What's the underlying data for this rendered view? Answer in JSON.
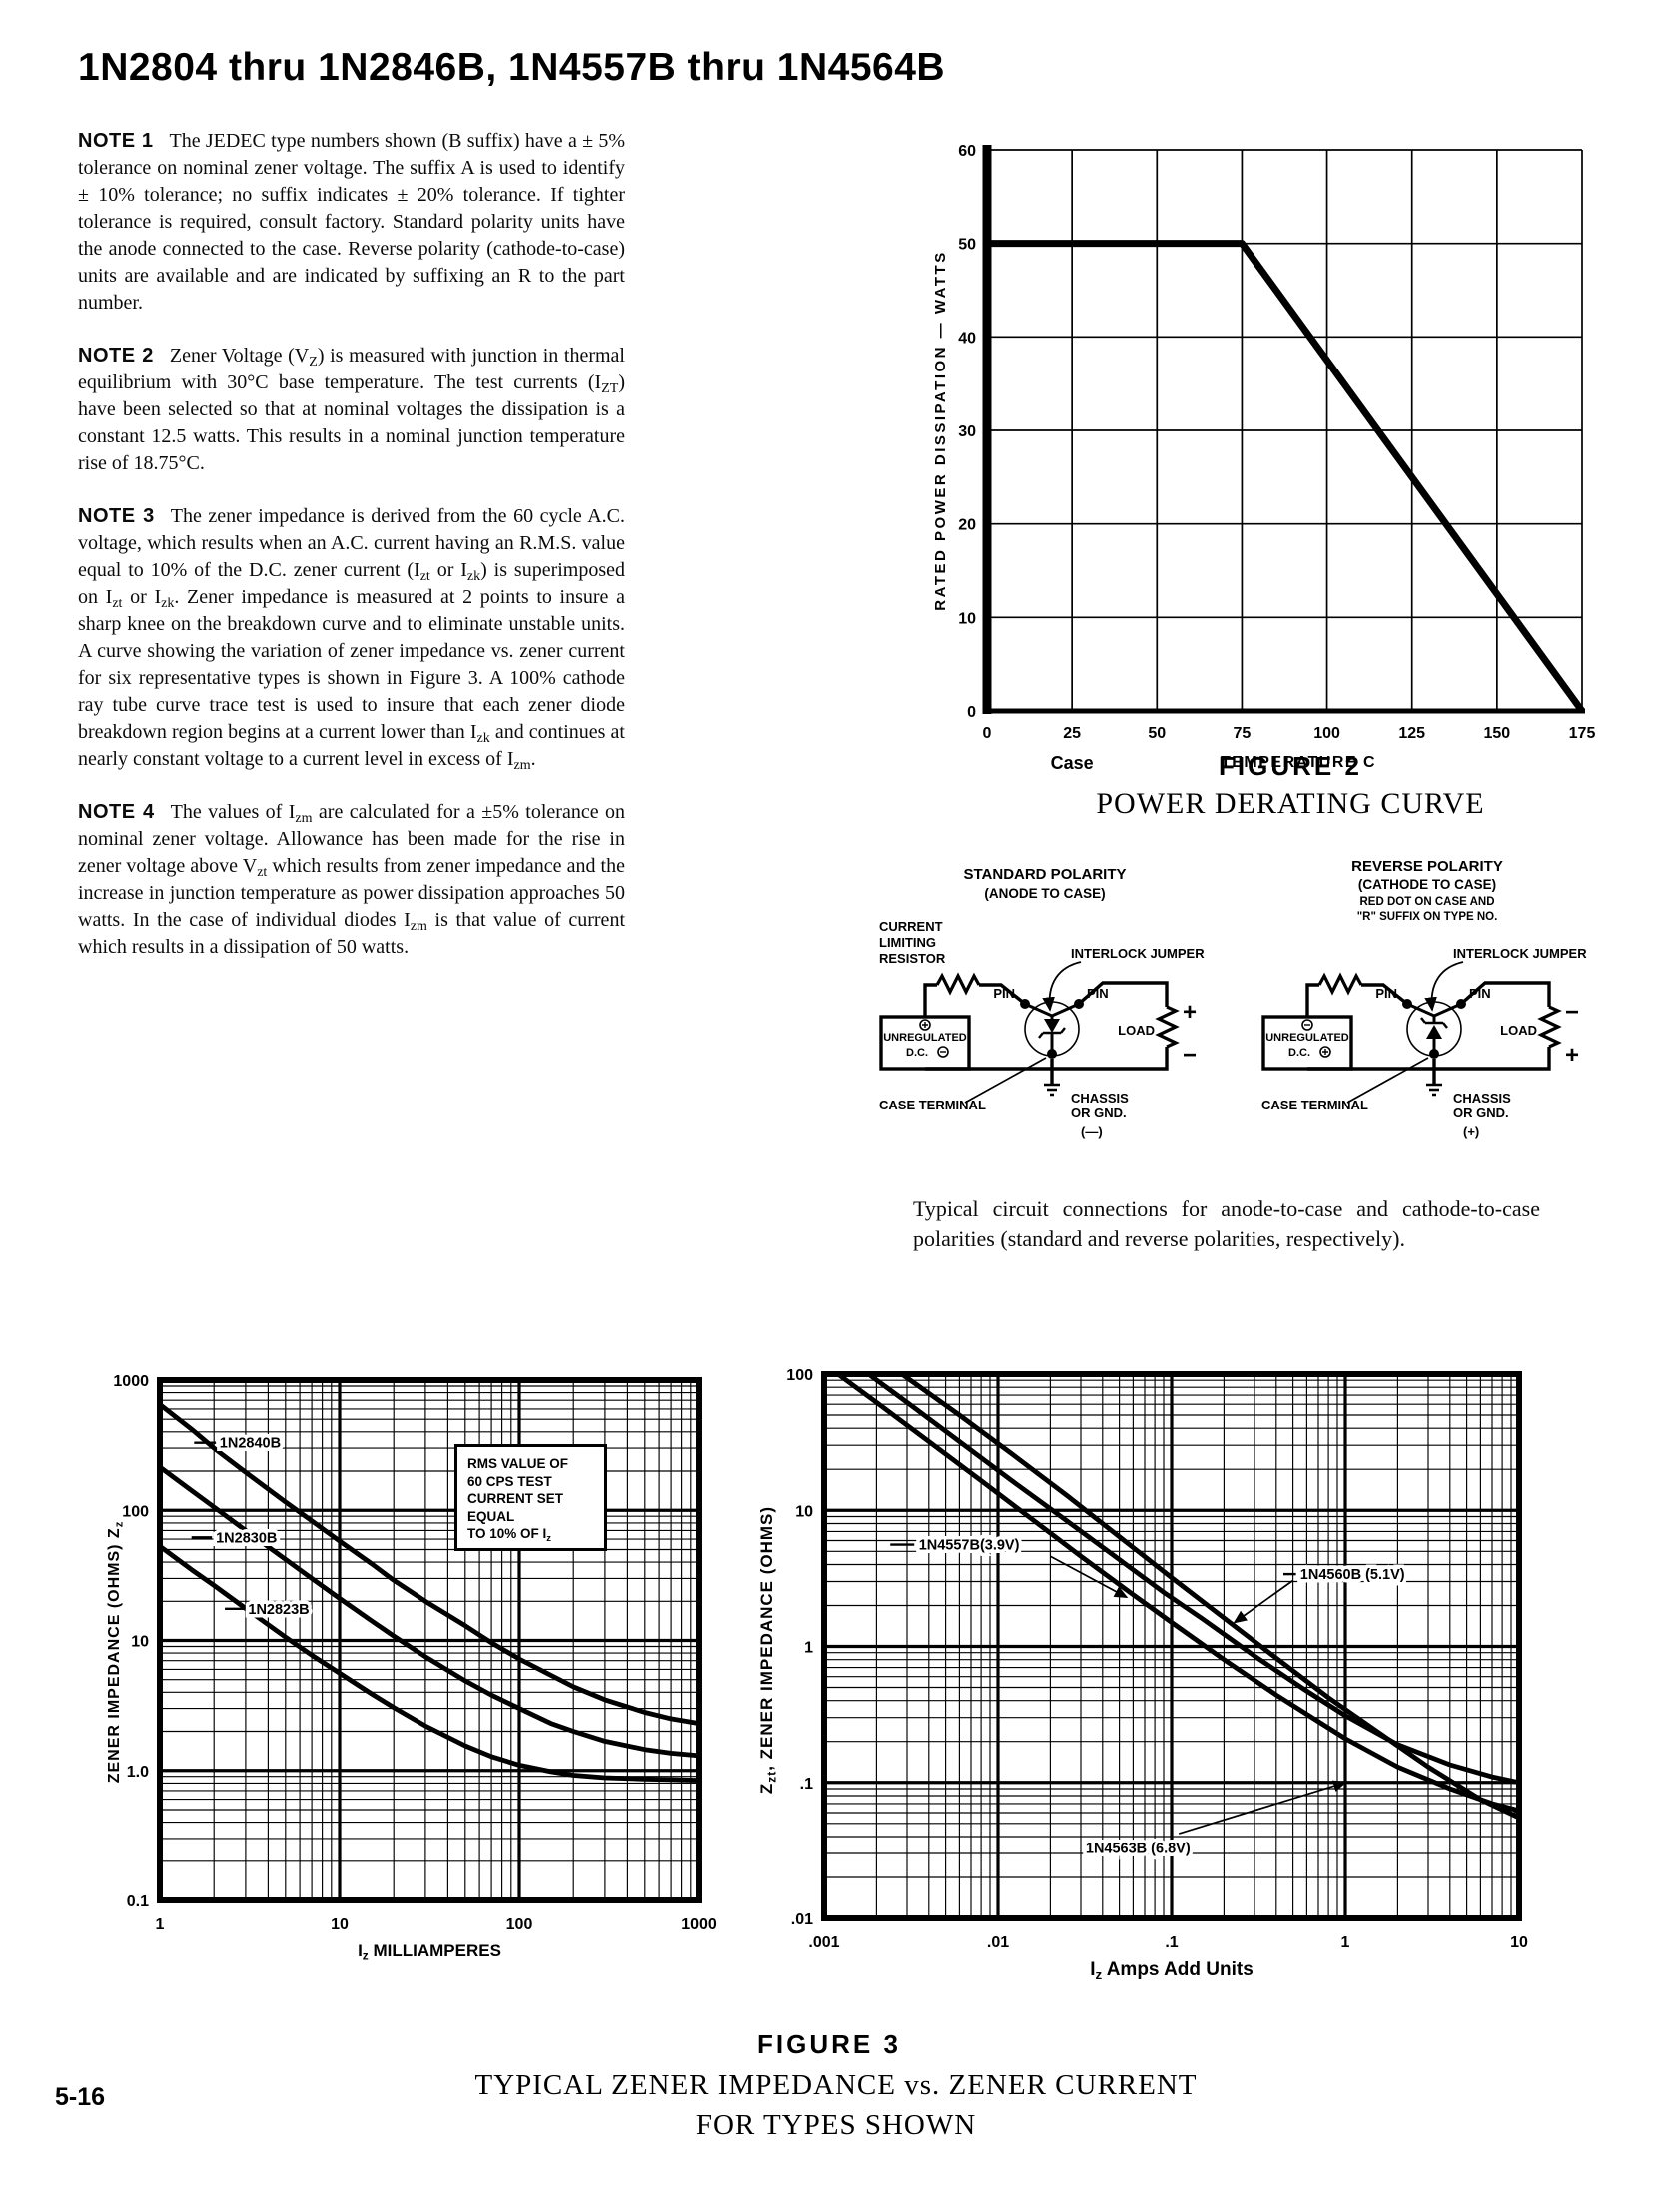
{
  "page": {
    "title": "1N2804 thru 1N2846B, 1N4557B thru 1N4564B",
    "page_number": "5-16"
  },
  "notes": [
    {
      "label": "NOTE 1",
      "text_html": "The JEDEC type numbers shown (B suffix) have a &#177; 5% tolerance on nominal zener voltage. The suffix A is used to identify &#177; 10% tolerance; no suffix indicates &#177; 20% tolerance. If tighter tolerance is required, consult factory. Standard polarity units have the anode connected to the case. Reverse polarity (cathode-to-case) units are available and are indicated by suffixing an R to the part number."
    },
    {
      "label": "NOTE 2",
      "text_html": "Zener Voltage (V<sub>Z</sub>) is measured with junction in thermal equilibrium with 30&#176;C base temperature. The test currents (I<sub>ZT</sub>) have been selected so that at nominal voltages the dissipation is a constant 12.5 watts. This results in a nominal junction temperature rise of 18.75&#176;C."
    },
    {
      "label": "NOTE 3",
      "text_html": "The zener impedance is derived from the 60 cycle A.C. voltage, which results when an A.C. current having an R.M.S. value equal to 10% of the D.C. zener current (I<sub>zt</sub> or I<sub>zk</sub>) is superimposed on I<sub>zt</sub> or I<sub>zk</sub>. Zener impedance is measured at 2 points to insure a sharp knee on the breakdown curve and to eliminate unstable units. A curve showing the variation of zener impedance vs. zener current for six representative types is shown in Figure 3. A 100% cathode ray tube curve trace test is used to insure that each zener diode breakdown region begins at a current lower than I<sub>zk</sub> and continues at nearly constant voltage to a current level in excess of I<sub>zm</sub>."
    },
    {
      "label": "NOTE 4",
      "text_html": "The values of I<sub>zm</sub> are calculated for a &#177;5% tolerance on nominal zener voltage. Allowance has been made for the rise in zener voltage above V<sub>zt</sub> which results from zener impedance and the increase in junction temperature as power dissipation approaches 50 watts. In the case of individual diodes I<sub>zm</sub> is that value of current which results in a dissipation of 50 watts."
    }
  ],
  "circuits": {
    "standard": {
      "title1": "STANDARD POLARITY",
      "title2": "(ANODE TO CASE)",
      "res1": "CURRENT",
      "res2": "LIMITING",
      "res3": "RESISTOR",
      "interlock": "INTERLOCK JUMPER",
      "pin_left": "PIN",
      "pin_right": "PIN",
      "src1": "UNREGULATED",
      "src2": "D.C.",
      "load": "LOAD",
      "sign_top": "+",
      "sign_bottom": "−",
      "case_terminal": "CASE TERMINAL",
      "chassis1": "CHASSIS",
      "chassis2": "OR GND.",
      "chassis3": "(—)"
    },
    "reverse": {
      "title1": "REVERSE POLARITY",
      "title2": "(CATHODE TO CASE)",
      "title3": "RED DOT ON CASE AND",
      "title4": "\"R\" SUFFIX ON TYPE NO.",
      "interlock": "INTERLOCK JUMPER",
      "pin_left": "PIN",
      "pin_right": "PIN",
      "src1": "UNREGULATED",
      "src2": "D.C.",
      "load": "LOAD",
      "sign_top": "−",
      "sign_bottom": "+",
      "case_terminal": "CASE TERMINAL",
      "chassis1": "CHASSIS",
      "chassis2": "OR GND.",
      "chassis3": "(+)"
    }
  },
  "circuit_caption": "Typical circuit connections for anode-to-case and cathode-to-case polarities (standard and reverse polarities, respectively).",
  "figure3": {
    "figure_label": "FIGURE 3",
    "caption1": "TYPICAL ZENER IMPEDANCE vs. ZENER CURRENT",
    "caption2": "FOR TYPES SHOWN"
  },
  "chart_data": [
    {
      "type": "line",
      "figure_label": "FIGURE 2",
      "title": "POWER DERATING CURVE",
      "xlabel": "TEMPERATURE  C",
      "xlabel_prefix": "Case",
      "ylabel": "RATED POWER DISSIPATION — WATTS",
      "xlim": [
        0,
        175
      ],
      "ylim": [
        0,
        60
      ],
      "x_step": 25,
      "y_step": 10,
      "x_ticks": [
        "0",
        "25",
        "50",
        "75",
        "100",
        "125",
        "150",
        "175"
      ],
      "y_ticks": [
        "0",
        "10",
        "20",
        "30",
        "40",
        "50",
        "60"
      ],
      "grid": "on",
      "legend": "none",
      "series": [
        {
          "name": "rated power derating",
          "points": [
            [
              0,
              50
            ],
            [
              75,
              50
            ],
            [
              175,
              0
            ]
          ]
        }
      ]
    },
    {
      "type": "line-loglog",
      "xlabel_html": "I<sub>z</sub> MILLIAMPERES",
      "ylabel_html": "ZENER IMPEDANCE (OHMS) Z<sub>z</sub>",
      "xlim": [
        1,
        1000
      ],
      "ylim": [
        0.1,
        1000
      ],
      "x_ticks": [
        {
          "v": 1,
          "t": "1"
        },
        {
          "v": 10,
          "t": "10"
        },
        {
          "v": 100,
          "t": "100"
        },
        {
          "v": 1000,
          "t": "1000"
        }
      ],
      "y_ticks": [
        {
          "v": 0.1,
          "t": "0.1"
        },
        {
          "v": 1,
          "t": "1.0"
        },
        {
          "v": 10,
          "t": "10"
        },
        {
          "v": 100,
          "t": "100"
        },
        {
          "v": 1000,
          "t": "1000"
        }
      ],
      "grid": "log-minor",
      "legend": "inline-labels",
      "annotation_html": "RMS VALUE OF<br>60 CPS TEST<br>CURRENT SET EQUAL<br>TO 10% OF I<sub>z</sub>",
      "series": [
        {
          "name": "1N2840B",
          "points": [
            [
              1,
              650
            ],
            [
              1.5,
              420
            ],
            [
              2,
              300
            ],
            [
              3,
              196
            ],
            [
              5,
              116
            ],
            [
              7,
              83
            ],
            [
              10,
              58
            ],
            [
              15,
              39
            ],
            [
              20,
              29
            ],
            [
              30,
              20
            ],
            [
              50,
              13
            ],
            [
              70,
              9.6
            ],
            [
              100,
              7.2
            ],
            [
              150,
              5.4
            ],
            [
              200,
              4.4
            ],
            [
              300,
              3.5
            ],
            [
              500,
              2.8
            ],
            [
              700,
              2.5
            ],
            [
              1000,
              2.3
            ]
          ]
        },
        {
          "name": "1N2830B",
          "points": [
            [
              1,
              215
            ],
            [
              1.5,
              142
            ],
            [
              2,
              106
            ],
            [
              3,
              70
            ],
            [
              5,
              42
            ],
            [
              7,
              30
            ],
            [
              10,
              21
            ],
            [
              15,
              14.2
            ],
            [
              20,
              10.8
            ],
            [
              30,
              7.5
            ],
            [
              50,
              4.9
            ],
            [
              70,
              3.8
            ],
            [
              100,
              3.0
            ],
            [
              150,
              2.3
            ],
            [
              200,
              2.0
            ],
            [
              300,
              1.68
            ],
            [
              500,
              1.45
            ],
            [
              700,
              1.36
            ],
            [
              1000,
              1.3
            ]
          ]
        },
        {
          "name": "1N2823B",
          "points": [
            [
              1,
              53
            ],
            [
              1.5,
              35
            ],
            [
              2,
              26.5
            ],
            [
              3,
              17.6
            ],
            [
              5,
              10.6
            ],
            [
              7,
              7.7
            ],
            [
              10,
              5.6
            ],
            [
              15,
              3.9
            ],
            [
              20,
              3.05
            ],
            [
              30,
              2.2
            ],
            [
              50,
              1.55
            ],
            [
              70,
              1.28
            ],
            [
              100,
              1.1
            ],
            [
              150,
              0.98
            ],
            [
              200,
              0.92
            ],
            [
              300,
              0.88
            ],
            [
              500,
              0.86
            ],
            [
              700,
              0.85
            ],
            [
              1000,
              0.84
            ]
          ]
        }
      ],
      "labels": [
        {
          "t": "1N2840B",
          "x": 2.15,
          "y": 330,
          "dash": [
            [
              1.55,
              330
            ],
            [
              2.05,
              330
            ]
          ]
        },
        {
          "t": "1N2830B",
          "x": 2.05,
          "y": 62,
          "dash": [
            [
              1.5,
              62
            ],
            [
              1.95,
              62
            ]
          ]
        },
        {
          "t": "1N2823B",
          "x": 3.1,
          "y": 17.5,
          "dash": [
            [
              2.3,
              17.5
            ],
            [
              3.0,
              17.5
            ]
          ]
        }
      ]
    },
    {
      "type": "line-loglog",
      "xlabel_html": "I<sub>z</sub> Amps Add Units",
      "ylabel_html": "Z<sub>zt</sub>, ZENER IMPEDANCE (OHMS)",
      "xlim": [
        0.001,
        10
      ],
      "ylim": [
        0.01,
        100
      ],
      "x_ticks": [
        {
          "v": 0.001,
          "t": ".001"
        },
        {
          "v": 0.01,
          "t": ".01"
        },
        {
          "v": 0.1,
          "t": ".1"
        },
        {
          "v": 1,
          "t": "1"
        },
        {
          "v": 10,
          "t": "10"
        }
      ],
      "y_ticks": [
        {
          "v": 0.01,
          "t": ".01"
        },
        {
          "v": 0.1,
          "t": ".1"
        },
        {
          "v": 1,
          "t": "1"
        },
        {
          "v": 10,
          "t": "10"
        },
        {
          "v": 100,
          "t": "100"
        }
      ],
      "grid": "log-minor",
      "legend": "inline-labels",
      "series": [
        {
          "name": "1N4557B (3.9V)",
          "points": [
            [
              0.0012,
              100
            ],
            [
              0.002,
              62
            ],
            [
              0.004,
              32
            ],
            [
              0.008,
              16.5
            ],
            [
              0.015,
              9
            ],
            [
              0.03,
              4.6
            ],
            [
              0.06,
              2.4
            ],
            [
              0.1,
              1.5
            ],
            [
              0.2,
              0.8
            ],
            [
              0.4,
              0.44
            ],
            [
              0.7,
              0.28
            ],
            [
              1,
              0.21
            ],
            [
              2,
              0.13
            ],
            [
              4,
              0.09
            ],
            [
              7,
              0.07
            ],
            [
              10,
              0.062
            ]
          ]
        },
        {
          "name": "1N4560B (5.1V)",
          "points": [
            [
              0.0018,
              100
            ],
            [
              0.003,
              62
            ],
            [
              0.006,
              32
            ],
            [
              0.012,
              16.5
            ],
            [
              0.022,
              9.4
            ],
            [
              0.045,
              4.8
            ],
            [
              0.09,
              2.5
            ],
            [
              0.15,
              1.6
            ],
            [
              0.3,
              0.85
            ],
            [
              0.6,
              0.47
            ],
            [
              1,
              0.31
            ],
            [
              2,
              0.19
            ],
            [
              4,
              0.135
            ],
            [
              7,
              0.11
            ],
            [
              10,
              0.1
            ]
          ]
        },
        {
          "name": "1N4563B (6.8V)",
          "points": [
            [
              0.0028,
              100
            ],
            [
              0.006,
              50
            ],
            [
              0.012,
              26
            ],
            [
              0.025,
              12.8
            ],
            [
              0.05,
              6.4
            ],
            [
              0.1,
              3.2
            ],
            [
              0.2,
              1.62
            ],
            [
              0.4,
              0.82
            ],
            [
              0.8,
              0.42
            ],
            [
              1.5,
              0.24
            ],
            [
              3,
              0.13
            ],
            [
              6,
              0.075
            ],
            [
              10,
              0.055
            ]
          ]
        }
      ],
      "labels": [
        {
          "t": "1N4557B(3.9V)",
          "x": 0.0035,
          "y": 5.6,
          "dash": [
            [
              0.0024,
              5.6
            ],
            [
              0.0033,
              5.6
            ]
          ],
          "leader": [
            [
              0.02,
              4.6
            ],
            [
              0.055,
              2.3
            ]
          ]
        },
        {
          "t": "1N4560B (5.1V)",
          "x": 0.55,
          "y": 3.4,
          "dash": [
            [
              0.44,
              3.4
            ],
            [
              0.52,
              3.4
            ]
          ],
          "leader": [
            [
              0.5,
              3.05
            ],
            [
              0.23,
              1.5
            ]
          ]
        },
        {
          "t": "1N4563B (6.8V)",
          "x": 0.032,
          "y": 0.033,
          "leader": [
            [
              0.11,
              0.042
            ],
            [
              1.0,
              0.1
            ]
          ]
        }
      ]
    }
  ]
}
